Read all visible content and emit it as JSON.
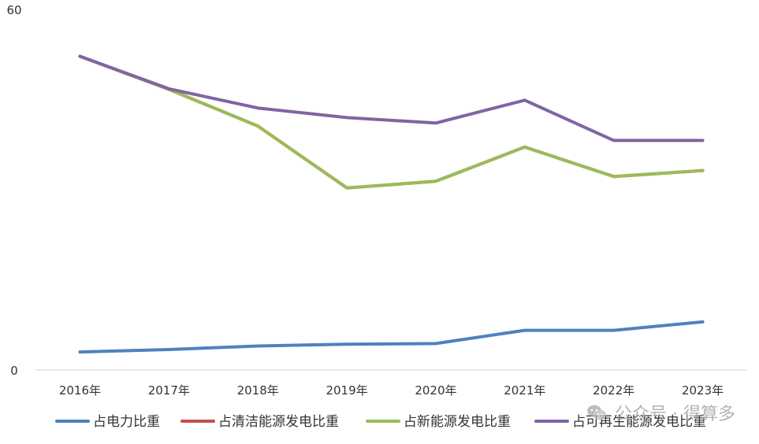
{
  "chart_data": {
    "type": "line",
    "title": "",
    "xlabel": "",
    "ylabel": "",
    "ylim": [
      0,
      60
    ],
    "ytick_labels": [
      "0",
      "60"
    ],
    "categories": [
      "2016年",
      "2017年",
      "2018年",
      "2019年",
      "2020年",
      "2021年",
      "2022年",
      "2023年"
    ],
    "series": [
      {
        "name": "占电力比重",
        "color": "#4f81bd",
        "values": [
          3.0,
          3.4,
          4.0,
          4.3,
          4.4,
          6.6,
          6.6,
          8.0
        ]
      },
      {
        "name": "占清洁能源发电比重",
        "color": "#c0504d",
        "values": [
          52.2,
          46.7,
          40.6,
          30.3,
          31.4,
          37.1,
          32.2,
          33.2
        ]
      },
      {
        "name": "占新能源发电比重",
        "color": "#9bbb59",
        "values": [
          52.2,
          46.7,
          40.6,
          30.3,
          31.4,
          37.1,
          32.2,
          33.2
        ]
      },
      {
        "name": "占可再生能源发电比重",
        "color": "#8064a2",
        "values": [
          52.2,
          46.8,
          43.6,
          42.0,
          41.1,
          44.9,
          38.2,
          38.2
        ]
      }
    ],
    "grid": false,
    "legend_position": "bottom"
  },
  "watermark": {
    "icon": "wechat-icon",
    "text": "公众号 · 得算多"
  }
}
